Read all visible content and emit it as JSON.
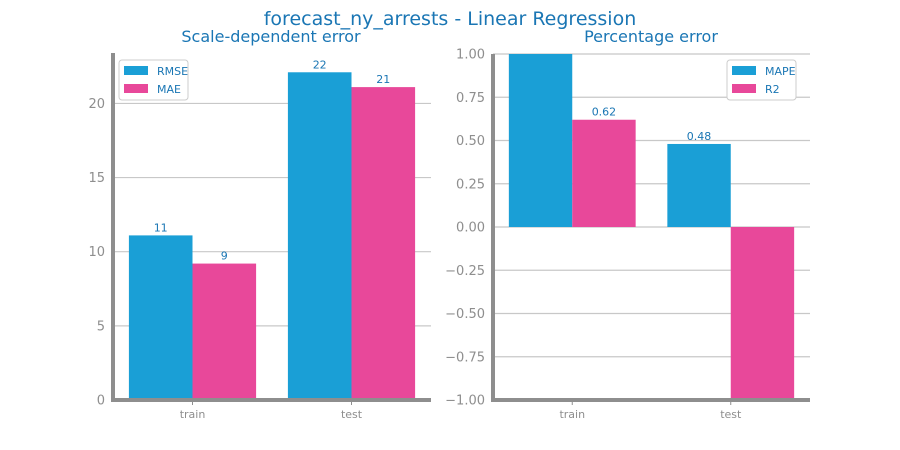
{
  "figure": {
    "title": "forecast_ny_arrests - Linear Regression"
  },
  "chart_data": [
    {
      "type": "bar",
      "title": "Scale-dependent error",
      "categories": [
        "train",
        "test"
      ],
      "series": [
        {
          "name": "RMSE",
          "values": [
            11.1,
            22.1
          ],
          "labels": [
            "11",
            "22"
          ],
          "color": "#1a9fd6"
        },
        {
          "name": "MAE",
          "values": [
            9.2,
            21.1
          ],
          "labels": [
            "9",
            "21"
          ],
          "color": "#e8489a"
        }
      ],
      "ylim": [
        0,
        23.4
      ],
      "yticks": [
        0,
        5,
        10,
        15,
        20
      ],
      "ytick_labels": [
        "0",
        "5",
        "10",
        "15",
        "20"
      ],
      "xlabel": "",
      "ylabel": "",
      "grid": true,
      "legend": "top-left"
    },
    {
      "type": "bar",
      "title": "Percentage error",
      "categories": [
        "train",
        "test"
      ],
      "series": [
        {
          "name": "MAPE",
          "values": [
            1.0,
            0.48
          ],
          "labels": [
            "",
            "0.48"
          ],
          "color": "#1a9fd6"
        },
        {
          "name": "R2",
          "values": [
            0.62,
            -1.0
          ],
          "labels": [
            "0.62",
            ""
          ],
          "color": "#e8489a"
        }
      ],
      "ylim": [
        -1.0,
        1.0
      ],
      "yticks": [
        -1.0,
        -0.75,
        -0.5,
        -0.25,
        0.0,
        0.25,
        0.5,
        0.75,
        1.0
      ],
      "ytick_labels": [
        "−1.00",
        "−0.75",
        "−0.50",
        "−0.25",
        "0.00",
        "0.25",
        "0.50",
        "0.75",
        "1.00"
      ],
      "xlabel": "",
      "ylabel": "",
      "grid": true,
      "legend": "top-right"
    }
  ]
}
